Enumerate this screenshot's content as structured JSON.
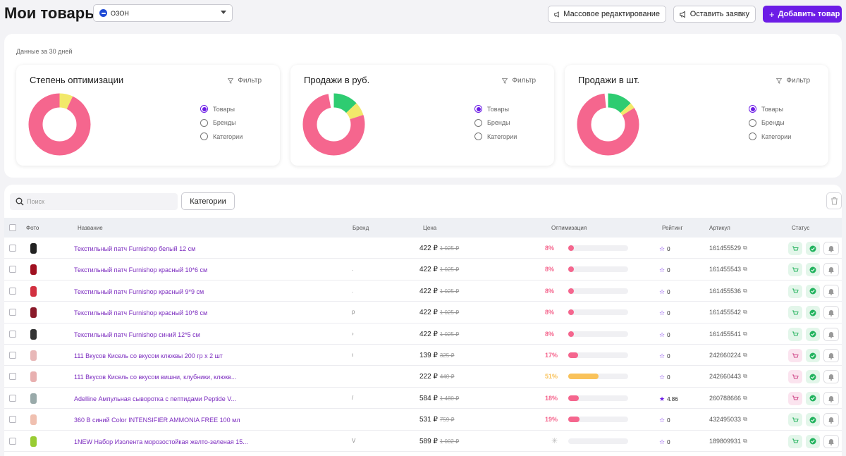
{
  "header": {
    "title": "Мои товары",
    "store_select": "ОЗОН",
    "mass_edit_label": "Массовое редактирование",
    "request_label": "Оставить заявку",
    "add_label": "Добавить товар"
  },
  "stats": {
    "period_label": "Данные за 30 дней",
    "cards": [
      {
        "title": "Степень оптимизации",
        "filter_label": "Фильтр",
        "options": [
          "Товары",
          "Бренды",
          "Категории"
        ],
        "selected": "Товары",
        "segments": [
          {
            "value": 0.93,
            "color": "#f5668e"
          },
          {
            "value": 0.07,
            "color": "#f2e86a"
          }
        ]
      },
      {
        "title": "Продажи в руб.",
        "filter_label": "Фильтр",
        "options": [
          "Товары",
          "Бренды",
          "Категории"
        ],
        "selected": "Товары",
        "segments": [
          {
            "value": 0.77,
            "color": "#f5668e"
          },
          {
            "value": 0.13,
            "color": "#2ecc71"
          },
          {
            "value": 0.07,
            "color": "#f2e86a"
          }
        ]
      },
      {
        "title": "Продажи в шт.",
        "filter_label": "Фильтр",
        "options": [
          "Товары",
          "Бренды",
          "Категории"
        ],
        "selected": "Товары",
        "segments": [
          {
            "value": 0.82,
            "color": "#f5668e"
          },
          {
            "value": 0.13,
            "color": "#2ecc71"
          },
          {
            "value": 0.03,
            "color": "#f2e86a"
          }
        ]
      }
    ]
  },
  "table": {
    "search_placeholder": "Поиск",
    "categories_label": "Категории",
    "columns": {
      "photo": "Фото",
      "name": "Название",
      "brand": "Бренд",
      "price": "Цена",
      "optimization": "Оптимизация",
      "rating": "Рейтинг",
      "article": "Артикул",
      "status": "Статус"
    },
    "rows": [
      {
        "name": "Текстильный патч Furnishop белый 12 см",
        "brand": "",
        "price": "422 ₽",
        "old_price": "1 025 ₽",
        "optimization": "8%",
        "opt_value": 0.08,
        "opt_color": "#f5668e",
        "rating": "0",
        "rating_filled": false,
        "article": "161455529",
        "status_pink": false,
        "photo_color": "#222"
      },
      {
        "name": "Текстильный патч Furnishop красный 10*6 см",
        "brand": ".",
        "price": "422 ₽",
        "old_price": "1 025 ₽",
        "optimization": "8%",
        "opt_value": 0.08,
        "opt_color": "#f5668e",
        "rating": "0",
        "rating_filled": false,
        "article": "161455543",
        "status_pink": false,
        "photo_color": "#a01020"
      },
      {
        "name": "Текстильный патч Furnishop красный 9*9 см",
        "brand": ".",
        "price": "422 ₽",
        "old_price": "1 025 ₽",
        "optimization": "8%",
        "opt_value": 0.08,
        "opt_color": "#f5668e",
        "rating": "0",
        "rating_filled": false,
        "article": "161455536",
        "status_pink": false,
        "photo_color": "#d23040"
      },
      {
        "name": "Текстильный патч Furnishop красный 10*8 см",
        "brand": "р",
        "price": "422 ₽",
        "old_price": "1 025 ₽",
        "optimization": "8%",
        "opt_value": 0.08,
        "opt_color": "#f5668e",
        "rating": "0",
        "rating_filled": false,
        "article": "161455542",
        "status_pink": false,
        "photo_color": "#8a1a2a"
      },
      {
        "name": "Текстильный патч Furnishop синий 12*5 см",
        "brand": "›",
        "price": "422 ₽",
        "old_price": "1 025 ₽",
        "optimization": "8%",
        "opt_value": 0.08,
        "opt_color": "#f5668e",
        "rating": "0",
        "rating_filled": false,
        "article": "161455541",
        "status_pink": false,
        "photo_color": "#333"
      },
      {
        "name": "111 Вкусов Кисель со вкусом клюквы 200 гр х 2 шт",
        "brand": "ı",
        "price": "139 ₽",
        "old_price": "325 ₽",
        "optimization": "17%",
        "opt_value": 0.17,
        "opt_color": "#f5668e",
        "rating": "0",
        "rating_filled": false,
        "article": "242660224",
        "status_pink": true,
        "photo_color": "#e8b8b8"
      },
      {
        "name": "111 Вкусов Кисель со вкусом вишни, клубники, клюкв...",
        "brand": "",
        "price": "222 ₽",
        "old_price": "440 ₽",
        "optimization": "51%",
        "opt_value": 0.51,
        "opt_color": "#f9c25a",
        "rating": "0",
        "rating_filled": false,
        "article": "242660443",
        "status_pink": true,
        "photo_color": "#e8b0b0"
      },
      {
        "name": "Adelline Ампульная сыворотка с пептидами Peptide V...",
        "brand": "/",
        "price": "584 ₽",
        "old_price": "1 480 ₽",
        "optimization": "18%",
        "opt_value": 0.18,
        "opt_color": "#f5668e",
        "rating": "4.86",
        "rating_filled": true,
        "article": "260788666",
        "status_pink": true,
        "photo_color": "#9aa"
      },
      {
        "name": "360 B синий Color INTENSIFIER AMMONIA FREE 100 мл",
        "brand": "",
        "price": "531 ₽",
        "old_price": "759 ₽",
        "optimization": "19%",
        "opt_value": 0.19,
        "opt_color": "#f5668e",
        "rating": "0",
        "rating_filled": false,
        "article": "432495033",
        "status_pink": false,
        "photo_color": "#f0c0b0"
      },
      {
        "name": "1NEW Набор Изолента морозостойкая желто-зеленая 15...",
        "brand": "V",
        "price": "589 ₽",
        "old_price": "1 002 ₽",
        "optimization": "",
        "opt_value": 0,
        "opt_color": "#f5668e",
        "rating": "0",
        "rating_filled": false,
        "article": "189809931",
        "status_pink": false,
        "photo_color": "#9c3"
      }
    ]
  }
}
